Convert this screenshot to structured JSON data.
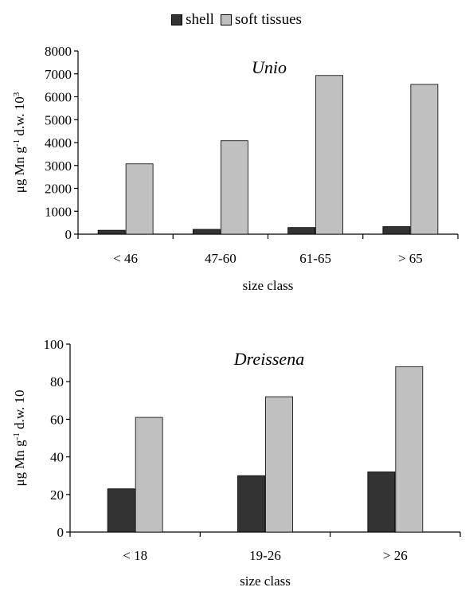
{
  "legend": {
    "items": [
      {
        "label": "shell",
        "color": "#333333"
      },
      {
        "label": "soft tissues",
        "color": "#c0c0c0"
      }
    ]
  },
  "chart_data": [
    {
      "type": "bar",
      "title": "Unio",
      "title_style": "italic",
      "categories": [
        "< 46",
        "47-60",
        "61-65",
        "> 65"
      ],
      "series": [
        {
          "name": "shell",
          "values": [
            170,
            210,
            290,
            330
          ],
          "color": "#333333"
        },
        {
          "name": "soft tissues",
          "values": [
            3070,
            4080,
            6930,
            6540
          ],
          "color": "#c0c0c0"
        }
      ],
      "ylim": [
        0,
        8000
      ],
      "yticks": [
        0,
        1000,
        2000,
        3000,
        4000,
        5000,
        6000,
        7000,
        8000
      ],
      "xlabel": "size class",
      "ylabel": {
        "pre": "μg Mn g",
        "sup1": "-1",
        "mid": " d.w. 10",
        "sup2": "3"
      },
      "grid": false
    },
    {
      "type": "bar",
      "title": "Dreissena",
      "title_style": "italic",
      "categories": [
        "< 18",
        "19-26",
        "> 26"
      ],
      "series": [
        {
          "name": "shell",
          "values": [
            23,
            30,
            32
          ],
          "color": "#333333"
        },
        {
          "name": "soft tissues",
          "values": [
            61,
            72,
            88
          ],
          "color": "#c0c0c0"
        }
      ],
      "ylim": [
        0,
        100
      ],
      "yticks": [
        0,
        20,
        40,
        60,
        80,
        100
      ],
      "xlabel": "size class",
      "ylabel": {
        "pre": "μg Mn g",
        "sup1": "-1",
        "mid": " d.w. 10",
        "sup2": ""
      },
      "grid": false
    }
  ]
}
